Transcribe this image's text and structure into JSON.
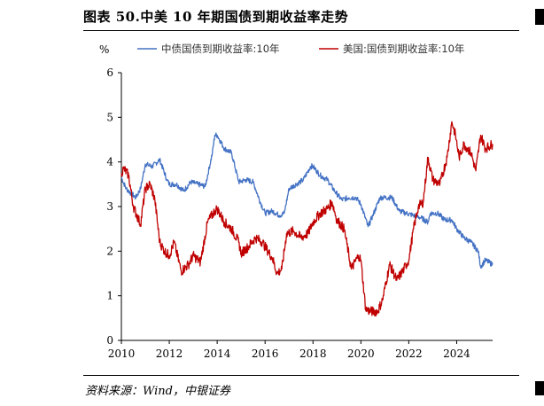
{
  "header": {
    "title": "图表 50.中美 10 年期国债到期收益率走势"
  },
  "footer": {
    "source": "资料来源：Wind，中银证券"
  },
  "chart_data": {
    "type": "line",
    "ylabel": "%",
    "ylim": [
      0,
      6
    ],
    "xlim": [
      2010,
      2025.5
    ],
    "y_ticks": [
      0,
      1,
      2,
      3,
      4,
      5,
      6
    ],
    "x_ticks": [
      2010,
      2012,
      2014,
      2016,
      2018,
      2020,
      2022,
      2024
    ],
    "legend_position": "top",
    "grid": false,
    "series": [
      {
        "name": "中债国债到期收益率:10年",
        "color": "#4472C4",
        "x": [
          2010.0,
          2010.2,
          2010.4,
          2010.6,
          2010.8,
          2011.0,
          2011.3,
          2011.6,
          2011.9,
          2012.0,
          2012.3,
          2012.6,
          2012.9,
          2013.2,
          2013.5,
          2013.8,
          2013.9,
          2014.0,
          2014.3,
          2014.6,
          2014.9,
          2015.2,
          2015.5,
          2015.8,
          2016.0,
          2016.3,
          2016.6,
          2016.8,
          2017.0,
          2017.3,
          2017.6,
          2017.9,
          2018.0,
          2018.3,
          2018.6,
          2018.9,
          2019.2,
          2019.5,
          2019.8,
          2020.0,
          2020.3,
          2020.5,
          2020.8,
          2021.0,
          2021.3,
          2021.6,
          2021.9,
          2022.2,
          2022.5,
          2022.8,
          2022.9,
          2023.2,
          2023.5,
          2023.8,
          2024.0,
          2024.3,
          2024.6,
          2024.9,
          2025.0,
          2025.2,
          2025.5
        ],
        "values": [
          3.65,
          3.4,
          3.3,
          3.2,
          3.4,
          3.95,
          3.9,
          4.05,
          3.6,
          3.5,
          3.5,
          3.35,
          3.55,
          3.5,
          3.45,
          4.2,
          4.6,
          4.6,
          4.3,
          4.2,
          3.55,
          3.6,
          3.55,
          3.1,
          2.85,
          2.9,
          2.8,
          2.85,
          3.4,
          3.5,
          3.6,
          3.9,
          3.9,
          3.7,
          3.6,
          3.35,
          3.15,
          3.2,
          3.2,
          3.05,
          2.55,
          2.8,
          3.2,
          3.2,
          3.2,
          2.9,
          2.85,
          2.8,
          2.75,
          2.65,
          2.85,
          2.85,
          2.7,
          2.7,
          2.5,
          2.3,
          2.2,
          2.0,
          1.65,
          1.8,
          1.7
        ]
      },
      {
        "name": "美国:国债到期收益率:10年",
        "color": "#C00000",
        "x": [
          2010.0,
          2010.1,
          2010.3,
          2010.5,
          2010.8,
          2011.0,
          2011.2,
          2011.4,
          2011.6,
          2011.8,
          2012.0,
          2012.2,
          2012.5,
          2012.8,
          2013.0,
          2013.3,
          2013.6,
          2013.9,
          2014.0,
          2014.3,
          2014.6,
          2014.9,
          2015.0,
          2015.3,
          2015.6,
          2015.9,
          2016.0,
          2016.3,
          2016.5,
          2016.7,
          2016.9,
          2017.2,
          2017.5,
          2017.8,
          2018.0,
          2018.3,
          2018.6,
          2018.8,
          2019.0,
          2019.3,
          2019.6,
          2019.9,
          2020.0,
          2020.2,
          2020.4,
          2020.7,
          2020.9,
          2021.2,
          2021.5,
          2021.8,
          2022.0,
          2022.2,
          2022.4,
          2022.6,
          2022.8,
          2023.0,
          2023.3,
          2023.6,
          2023.8,
          2023.95,
          2024.1,
          2024.3,
          2024.6,
          2024.8,
          2025.0,
          2025.2,
          2025.5
        ],
        "values": [
          3.75,
          3.85,
          3.7,
          3.0,
          2.6,
          3.4,
          3.5,
          3.15,
          2.2,
          2.0,
          1.9,
          2.2,
          1.55,
          1.7,
          1.9,
          1.75,
          2.65,
          2.9,
          2.95,
          2.65,
          2.5,
          2.2,
          1.95,
          2.1,
          2.3,
          2.2,
          2.1,
          1.85,
          1.5,
          1.6,
          2.4,
          2.45,
          2.3,
          2.4,
          2.65,
          2.85,
          2.95,
          3.1,
          2.7,
          2.5,
          1.6,
          1.9,
          1.8,
          0.7,
          0.65,
          0.65,
          0.9,
          1.7,
          1.35,
          1.6,
          1.8,
          2.5,
          3.0,
          3.1,
          4.1,
          3.6,
          3.5,
          4.1,
          4.9,
          4.6,
          4.1,
          4.4,
          4.2,
          3.8,
          4.6,
          4.3,
          4.4
        ]
      }
    ]
  }
}
